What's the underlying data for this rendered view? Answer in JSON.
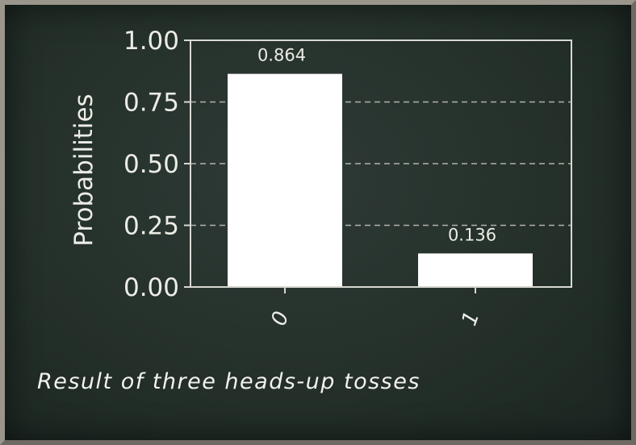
{
  "chart_data": {
    "type": "bar",
    "categories": [
      "0",
      "1"
    ],
    "values": [
      0.864,
      0.136
    ],
    "value_labels": [
      "0.864",
      "0.136"
    ],
    "ylabel": "Probabilities",
    "xlabel": "",
    "ylim": [
      0,
      1.0
    ],
    "yticks": [
      0.0,
      0.25,
      0.5,
      0.75,
      1.0
    ],
    "ytick_labels": [
      "0.00",
      "0.25",
      "0.50",
      "0.75",
      "1.00"
    ],
    "grid": "horizontal dashed",
    "colors": {
      "bar": "#ffffff",
      "axis": "#d8d8d2",
      "grid": "#c9c9c2",
      "text": "#ececE6"
    }
  },
  "caption": "Result of three heads-up tosses"
}
